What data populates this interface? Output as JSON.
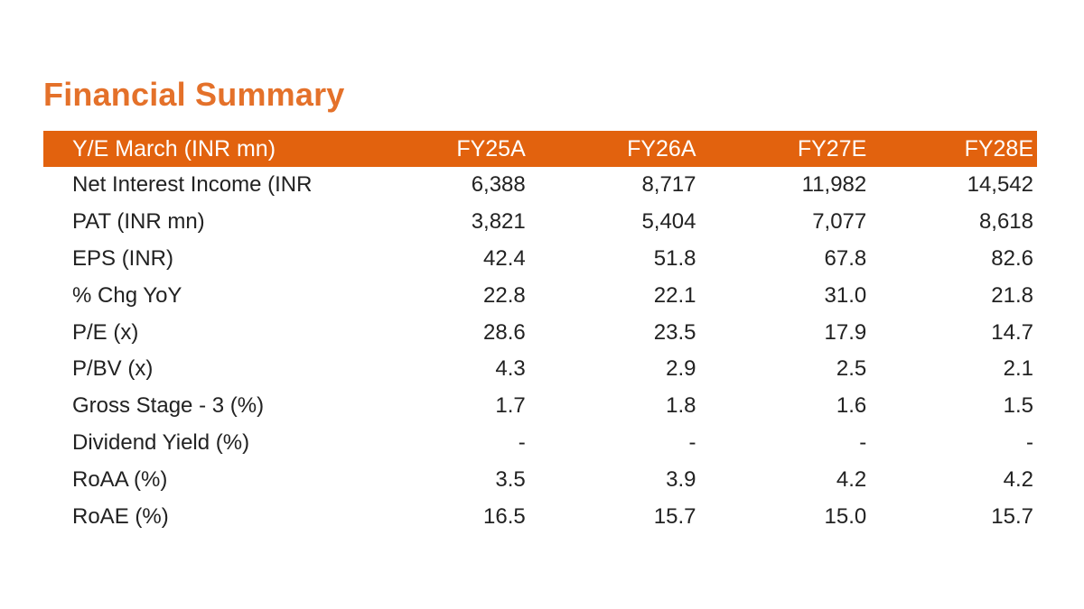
{
  "title": "Financial Summary",
  "table": {
    "header": {
      "label": "Y/E March (INR mn)",
      "columns": [
        "FY25A",
        "FY26A",
        "FY27E",
        "FY28E"
      ]
    },
    "rows": [
      {
        "label": "Net Interest Income (INR",
        "values": [
          "6,388",
          "8,717",
          "11,982",
          "14,542"
        ]
      },
      {
        "label": "PAT (INR mn)",
        "values": [
          "3,821",
          "5,404",
          "7,077",
          "8,618"
        ]
      },
      {
        "label": "EPS (INR)",
        "values": [
          "42.4",
          "51.8",
          "67.8",
          "82.6"
        ]
      },
      {
        "label": "% Chg YoY",
        "values": [
          "22.8",
          "22.1",
          "31.0",
          "21.8"
        ]
      },
      {
        "label": "P/E (x)",
        "values": [
          "28.6",
          "23.5",
          "17.9",
          "14.7"
        ]
      },
      {
        "label": "P/BV (x)",
        "values": [
          "4.3",
          "2.9",
          "2.5",
          "2.1"
        ]
      },
      {
        "label": "Gross Stage - 3 (%)",
        "values": [
          "1.7",
          "1.8",
          "1.6",
          "1.5"
        ]
      },
      {
        "label": "Dividend Yield (%)",
        "values": [
          "-",
          "-",
          "-",
          "-"
        ]
      },
      {
        "label": "RoAA (%)",
        "values": [
          "3.5",
          "3.9",
          "4.2",
          "4.2"
        ]
      },
      {
        "label": "RoAE (%)",
        "values": [
          "16.5",
          "15.7",
          "15.0",
          "15.7"
        ]
      }
    ]
  },
  "colors": {
    "title": "#e4712a",
    "header_background": "#e2620e",
    "header_text": "#ffffff",
    "body_text": "#222222"
  }
}
